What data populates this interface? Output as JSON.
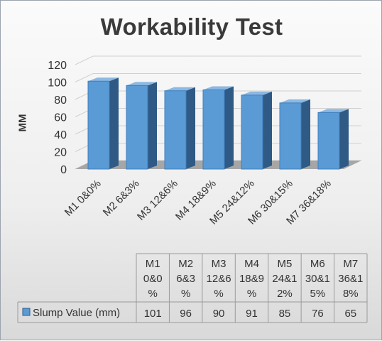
{
  "chart_data": {
    "type": "bar",
    "title": "Workability Test",
    "ylabel": "MM",
    "xlabel": "",
    "categories": [
      "M1 0&0%",
      "M2 6&3%",
      "M3 12&6%",
      "M4 18&9%",
      "M5 24&12%",
      "M6 30&15%",
      "M7 36&18%"
    ],
    "table_headers": [
      [
        "M1",
        "0&0",
        "%"
      ],
      [
        "M2",
        "6&3",
        "%"
      ],
      [
        "M3",
        "12&6",
        "%"
      ],
      [
        "M4",
        "18&9",
        "%"
      ],
      [
        "M5",
        "24&1",
        "2%"
      ],
      [
        "M6",
        "30&1",
        "5%"
      ],
      [
        "M7",
        "36&1",
        "8%"
      ]
    ],
    "series": [
      {
        "name": "Slump Value (mm)",
        "values": [
          101,
          96,
          90,
          91,
          85,
          76,
          65
        ]
      }
    ],
    "ylim": [
      0,
      120
    ],
    "yticks": [
      0,
      20,
      40,
      60,
      80,
      100,
      120
    ],
    "grid": true,
    "legend": "data-table",
    "colors": {
      "bar_front": "#5b9bd5",
      "bar_side": "#2e5a85",
      "bar_top": "#8cb8e2",
      "grid": "#d0d0d0",
      "floor": "#a6a6a6"
    }
  }
}
